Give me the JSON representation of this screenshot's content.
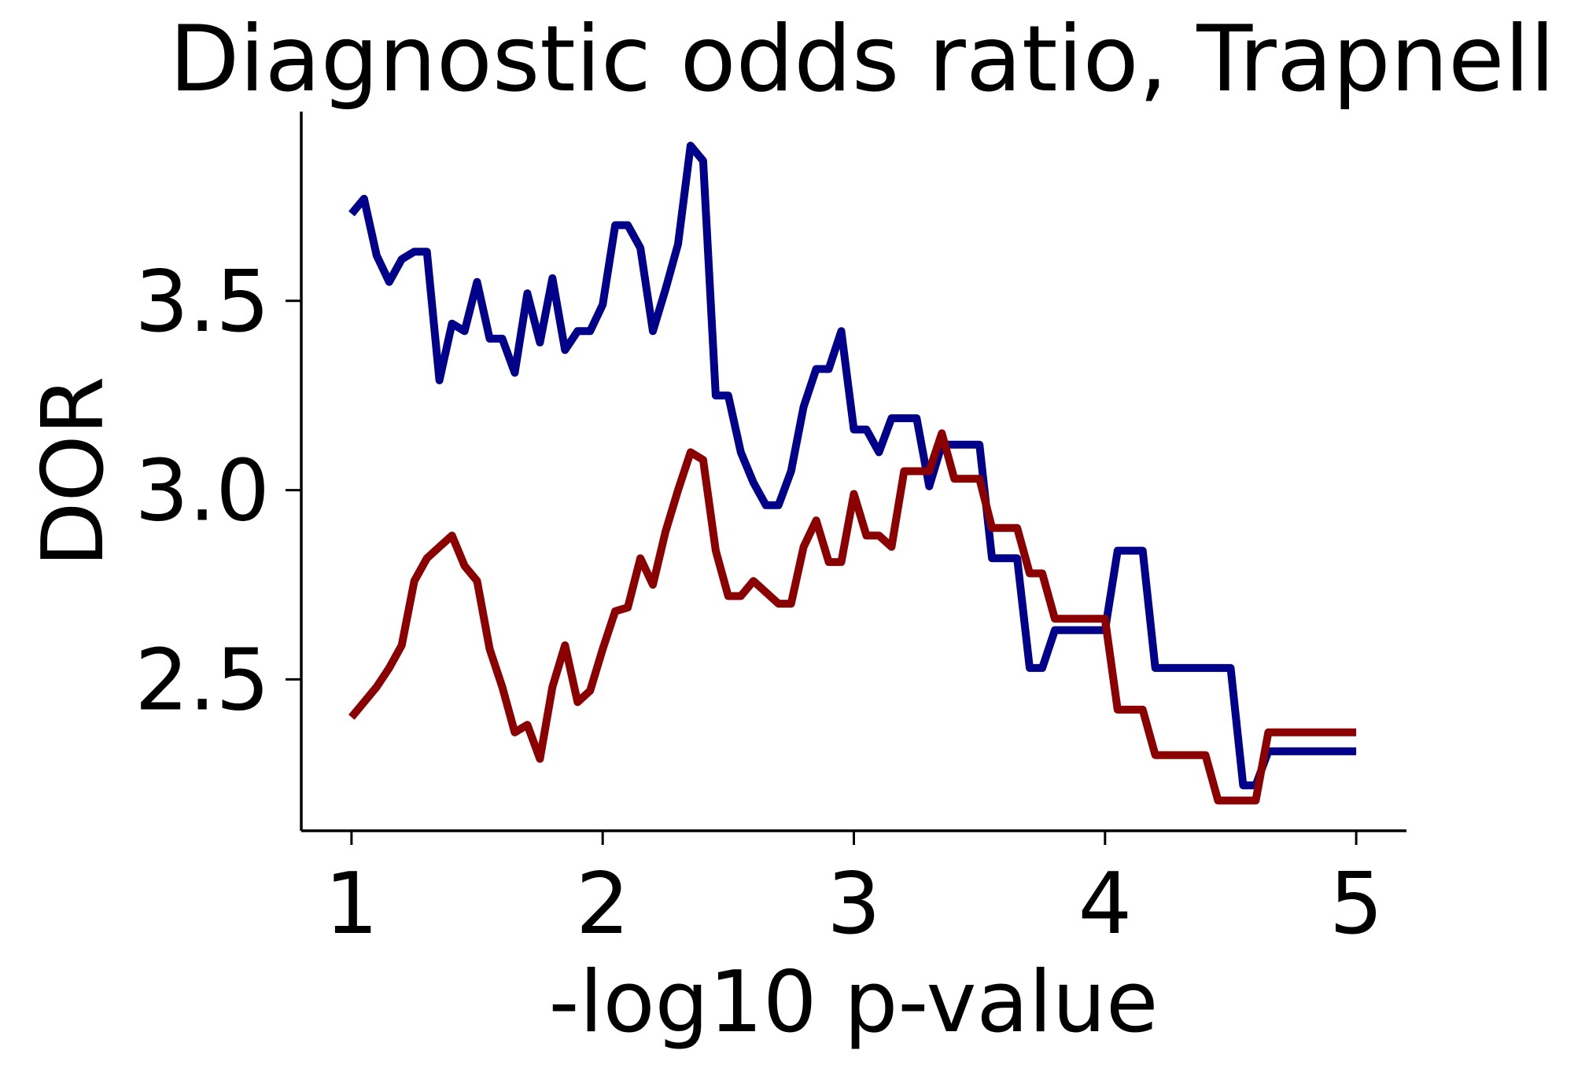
{
  "chart_data": {
    "type": "line",
    "title": "Diagnostic odds ratio, Trapnell",
    "xlabel": "-log10 p-value",
    "ylabel": "DOR",
    "xlim": [
      0.8,
      5.2
    ],
    "ylim": [
      2.1,
      4.0
    ],
    "xticks": [
      1,
      2,
      3,
      4,
      5
    ],
    "xtick_labels": [
      "1",
      "2",
      "3",
      "4",
      "5"
    ],
    "yticks": [
      2.5,
      3.0,
      3.5
    ],
    "ytick_labels": [
      "2.5",
      "3.0",
      "3.5"
    ],
    "grid": false,
    "legend": "none",
    "series": [
      {
        "color": "#00008b",
        "x": [
          1.0,
          1.05,
          1.1,
          1.15,
          1.2,
          1.25,
          1.3,
          1.35,
          1.4,
          1.45,
          1.5,
          1.55,
          1.6,
          1.65,
          1.7,
          1.75,
          1.8,
          1.85,
          1.9,
          1.95,
          2.0,
          2.05,
          2.1,
          2.15,
          2.2,
          2.25,
          2.3,
          2.35,
          2.4,
          2.45,
          2.5,
          2.55,
          2.6,
          2.65,
          2.7,
          2.75,
          2.8,
          2.85,
          2.9,
          2.95,
          3.0,
          3.05,
          3.1,
          3.15,
          3.2,
          3.25,
          3.3,
          3.35,
          3.4,
          3.45,
          3.5,
          3.55,
          3.6,
          3.65,
          3.7,
          3.75,
          3.8,
          3.85,
          3.9,
          3.95,
          4.0,
          4.05,
          4.1,
          4.15,
          4.2,
          4.25,
          4.3,
          4.35,
          4.4,
          4.45,
          4.5,
          4.55,
          4.6,
          4.65,
          4.7,
          4.75,
          4.8,
          4.85,
          4.9,
          4.95,
          5.0
        ],
        "y": [
          3.73,
          3.77,
          3.62,
          3.55,
          3.61,
          3.63,
          3.63,
          3.29,
          3.44,
          3.42,
          3.55,
          3.4,
          3.4,
          3.31,
          3.52,
          3.39,
          3.56,
          3.37,
          3.42,
          3.42,
          3.49,
          3.7,
          3.7,
          3.64,
          3.42,
          3.53,
          3.65,
          3.91,
          3.87,
          3.25,
          3.25,
          3.1,
          3.02,
          2.96,
          2.96,
          3.05,
          3.22,
          3.32,
          3.32,
          3.42,
          3.16,
          3.16,
          3.1,
          3.19,
          3.19,
          3.19,
          3.01,
          3.12,
          3.12,
          3.12,
          3.12,
          2.82,
          2.82,
          2.82,
          2.53,
          2.53,
          2.63,
          2.63,
          2.63,
          2.63,
          2.63,
          2.84,
          2.84,
          2.84,
          2.53,
          2.53,
          2.53,
          2.53,
          2.53,
          2.53,
          2.53,
          2.22,
          2.22,
          2.31,
          2.31,
          2.31,
          2.31,
          2.31,
          2.31,
          2.31,
          2.31
        ]
      },
      {
        "color": "#8b0000",
        "x": [
          1.0,
          1.05,
          1.1,
          1.15,
          1.2,
          1.25,
          1.3,
          1.35,
          1.4,
          1.45,
          1.5,
          1.55,
          1.6,
          1.65,
          1.7,
          1.75,
          1.8,
          1.85,
          1.9,
          1.95,
          2.0,
          2.05,
          2.1,
          2.15,
          2.2,
          2.25,
          2.3,
          2.35,
          2.4,
          2.45,
          2.5,
          2.55,
          2.6,
          2.65,
          2.7,
          2.75,
          2.8,
          2.85,
          2.9,
          2.95,
          3.0,
          3.05,
          3.1,
          3.15,
          3.2,
          3.25,
          3.3,
          3.35,
          3.4,
          3.45,
          3.5,
          3.55,
          3.6,
          3.65,
          3.7,
          3.75,
          3.8,
          3.85,
          3.9,
          3.95,
          4.0,
          4.05,
          4.1,
          4.15,
          4.2,
          4.25,
          4.3,
          4.35,
          4.4,
          4.45,
          4.5,
          4.55,
          4.6,
          4.65,
          4.7,
          4.75,
          4.8,
          4.85,
          4.9,
          4.95,
          5.0
        ],
        "y": [
          2.4,
          2.44,
          2.48,
          2.53,
          2.59,
          2.76,
          2.82,
          2.85,
          2.88,
          2.8,
          2.76,
          2.58,
          2.48,
          2.36,
          2.38,
          2.29,
          2.48,
          2.59,
          2.44,
          2.47,
          2.58,
          2.68,
          2.69,
          2.82,
          2.75,
          2.89,
          3.0,
          3.1,
          3.08,
          2.84,
          2.72,
          2.72,
          2.76,
          2.73,
          2.7,
          2.7,
          2.85,
          2.92,
          2.81,
          2.81,
          2.99,
          2.88,
          2.88,
          2.85,
          3.05,
          3.05,
          3.05,
          3.15,
          3.03,
          3.03,
          3.03,
          2.9,
          2.9,
          2.9,
          2.78,
          2.78,
          2.66,
          2.66,
          2.66,
          2.66,
          2.66,
          2.42,
          2.42,
          2.42,
          2.3,
          2.3,
          2.3,
          2.3,
          2.3,
          2.18,
          2.18,
          2.18,
          2.18,
          2.36,
          2.36,
          2.36,
          2.36,
          2.36,
          2.36,
          2.36,
          2.36
        ]
      }
    ]
  }
}
